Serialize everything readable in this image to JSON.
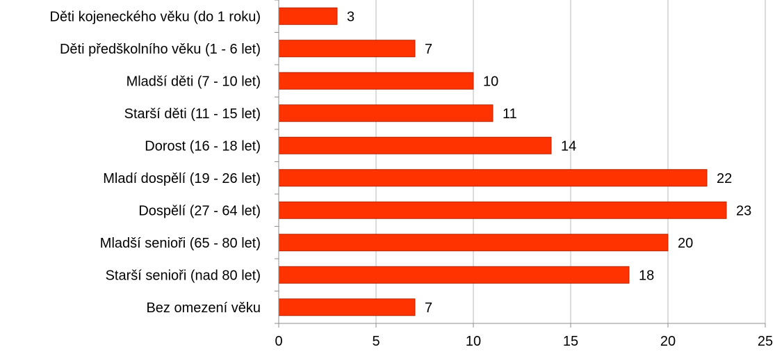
{
  "chart_data": {
    "type": "bar",
    "orientation": "horizontal",
    "categories": [
      "Děti kojeneckého věku (do 1 roku)",
      "Děti předškolního věku (1 - 6 let)",
      "Mladší děti (7 - 10 let)",
      "Starší děti (11 - 15 let)",
      "Dorost (16 - 18 let)",
      "Mladí dospělí (19 - 26 let)",
      "Dospělí (27 - 64 let)",
      "Mladší senioři (65 - 80 let)",
      "Starší senioři (nad 80 let)",
      "Bez omezení věku"
    ],
    "values": [
      3,
      7,
      10,
      11,
      14,
      22,
      23,
      20,
      18,
      7
    ],
    "xlim": [
      0,
      25
    ],
    "xticks": [
      0,
      5,
      10,
      15,
      20,
      25
    ],
    "grid": true,
    "legend": "none",
    "colors": {
      "bar": "#ff3300",
      "bar_edge": "#b22400",
      "grid": "#b8b8b8",
      "axis": "#8c8c8c"
    }
  }
}
